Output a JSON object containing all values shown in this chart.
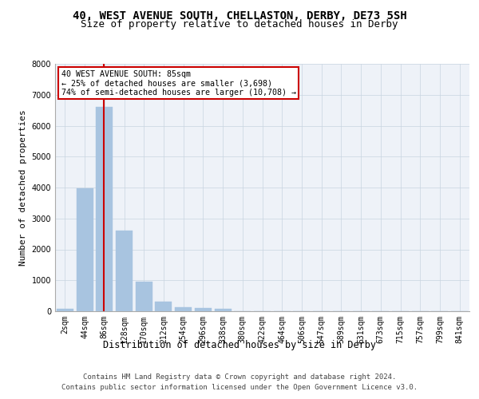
{
  "title_line1": "40, WEST AVENUE SOUTH, CHELLASTON, DERBY, DE73 5SH",
  "title_line2": "Size of property relative to detached houses in Derby",
  "xlabel": "Distribution of detached houses by size in Derby",
  "ylabel": "Number of detached properties",
  "categories": [
    "2sqm",
    "44sqm",
    "86sqm",
    "128sqm",
    "170sqm",
    "212sqm",
    "254sqm",
    "296sqm",
    "338sqm",
    "380sqm",
    "422sqm",
    "464sqm",
    "506sqm",
    "547sqm",
    "589sqm",
    "631sqm",
    "673sqm",
    "715sqm",
    "757sqm",
    "799sqm",
    "841sqm"
  ],
  "values": [
    70,
    3980,
    6600,
    2600,
    960,
    310,
    135,
    100,
    80,
    0,
    0,
    0,
    0,
    0,
    0,
    0,
    0,
    0,
    0,
    0,
    0
  ],
  "bar_color": "#a8c4e0",
  "bar_edge_color": "#a8c4e0",
  "grid_color": "#c8d4e0",
  "background_color": "#eef2f8",
  "annotation_text": "40 WEST AVENUE SOUTH: 85sqm\n← 25% of detached houses are smaller (3,698)\n74% of semi-detached houses are larger (10,708) →",
  "annotation_box_color": "#ffffff",
  "annotation_box_edge": "#cc0000",
  "vline_x_index": 1.98,
  "vline_color": "#cc0000",
  "ylim": [
    0,
    8000
  ],
  "yticks": [
    0,
    1000,
    2000,
    3000,
    4000,
    5000,
    6000,
    7000,
    8000
  ],
  "footer_line1": "Contains HM Land Registry data © Crown copyright and database right 2024.",
  "footer_line2": "Contains public sector information licensed under the Open Government Licence v3.0.",
  "title_fontsize": 10,
  "subtitle_fontsize": 9,
  "axis_label_fontsize": 8.5,
  "tick_fontsize": 7,
  "footer_fontsize": 6.5,
  "ylabel_fontsize": 8
}
